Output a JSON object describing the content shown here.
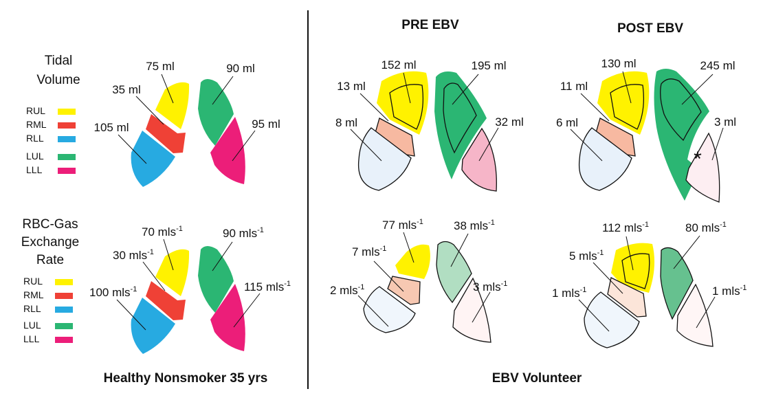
{
  "left_panel": {
    "tidal_title": [
      "Tidal",
      "Volume"
    ],
    "rbc_title": [
      "RBC-Gas",
      "Exchange",
      "Rate"
    ],
    "legend": [
      {
        "label": "RUL",
        "color": "#FFF200"
      },
      {
        "label": "RML",
        "color": "#EF4136"
      },
      {
        "label": "RLL",
        "color": "#27AAE1"
      },
      {
        "label": "LUL",
        "color": "#2BB673"
      },
      {
        "label": "LLL",
        "color": "#EC1E79"
      }
    ],
    "caption": "Healthy Nonsmoker  35 yrs"
  },
  "right_panel": {
    "pre_title": "PRE EBV",
    "post_title": "POST EBV",
    "caption": "EBV Volunteer"
  },
  "healthy_tidal": {
    "rul": "75 ml",
    "rml": "35 ml",
    "rll": "105 ml",
    "lul": "90 ml",
    "lll": "95 ml"
  },
  "healthy_rbc": {
    "rul": "70 mls",
    "rml": "30 mls",
    "rll": "100 mls",
    "lul": "90 mls",
    "lll": "115 mls"
  },
  "pre_tidal": {
    "rul": "152 ml",
    "rml": "13 ml",
    "rll": "8 ml",
    "lul": "195 ml",
    "lll": "32 ml"
  },
  "post_tidal": {
    "rul": "130 ml",
    "rml": "11 ml",
    "rll": "6 ml",
    "lul": "245 ml",
    "lll": "3 ml"
  },
  "pre_rbc": {
    "rul": "77 mls",
    "rml": "7 mls",
    "rll": "2 mls",
    "lul": "38 mls",
    "lll": "3 mls"
  },
  "post_rbc": {
    "rul": "112 mls",
    "rml": "5 mls",
    "rll": "1 mls",
    "lul": "80 mls",
    "lll": "1 mls"
  },
  "unit_superscript": "-1",
  "valve_marker": "*"
}
